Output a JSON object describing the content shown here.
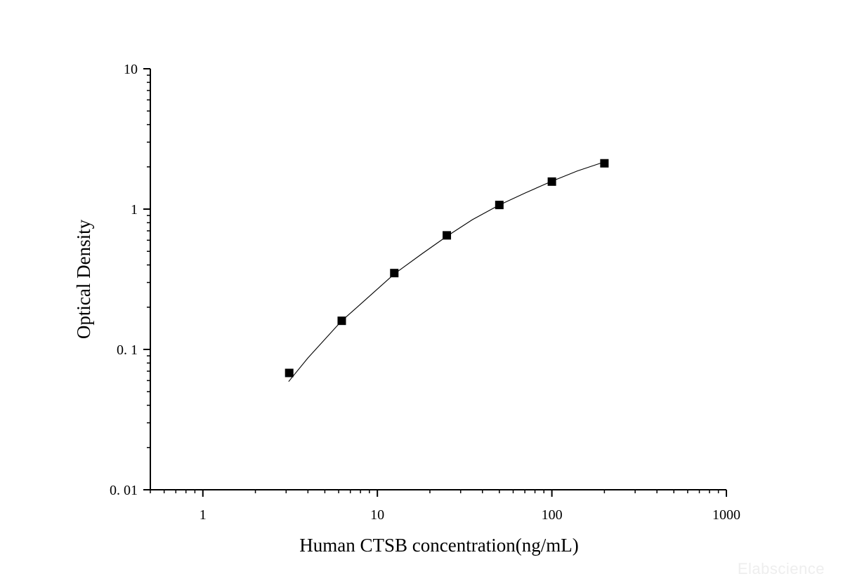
{
  "chart_data": {
    "type": "scatter",
    "xlabel": "Human CTSB concentration(ng/mL)",
    "ylabel": "Optical Density",
    "xscale": "log",
    "yscale": "log",
    "xlim": [
      0.5,
      1000
    ],
    "ylim": [
      0.01,
      10
    ],
    "xticks": [
      {
        "value": 1,
        "label": "1"
      },
      {
        "value": 10,
        "label": "10"
      },
      {
        "value": 100,
        "label": "100"
      },
      {
        "value": 1000,
        "label": "1000"
      }
    ],
    "yticks": [
      {
        "value": 0.01,
        "label": "0. 01"
      },
      {
        "value": 0.1,
        "label": "0. 1"
      },
      {
        "value": 1,
        "label": "1"
      },
      {
        "value": 10,
        "label": "10"
      }
    ],
    "grid": false,
    "series": [
      {
        "marker": "square",
        "color": "#000000",
        "x": [
          3.125,
          6.25,
          12.5,
          25,
          50,
          100,
          200
        ],
        "y": [
          0.068,
          0.16,
          0.35,
          0.65,
          1.07,
          1.57,
          2.12
        ]
      }
    ],
    "fit_curve": {
      "color": "#000000",
      "x": [
        3.1,
        4,
        6.25,
        8,
        12.5,
        18,
        25,
        35,
        50,
        70,
        100,
        140,
        200
      ],
      "y": [
        0.059,
        0.087,
        0.16,
        0.21,
        0.345,
        0.48,
        0.64,
        0.84,
        1.07,
        1.3,
        1.58,
        1.87,
        2.17
      ]
    },
    "watermark": "Elabscience"
  }
}
